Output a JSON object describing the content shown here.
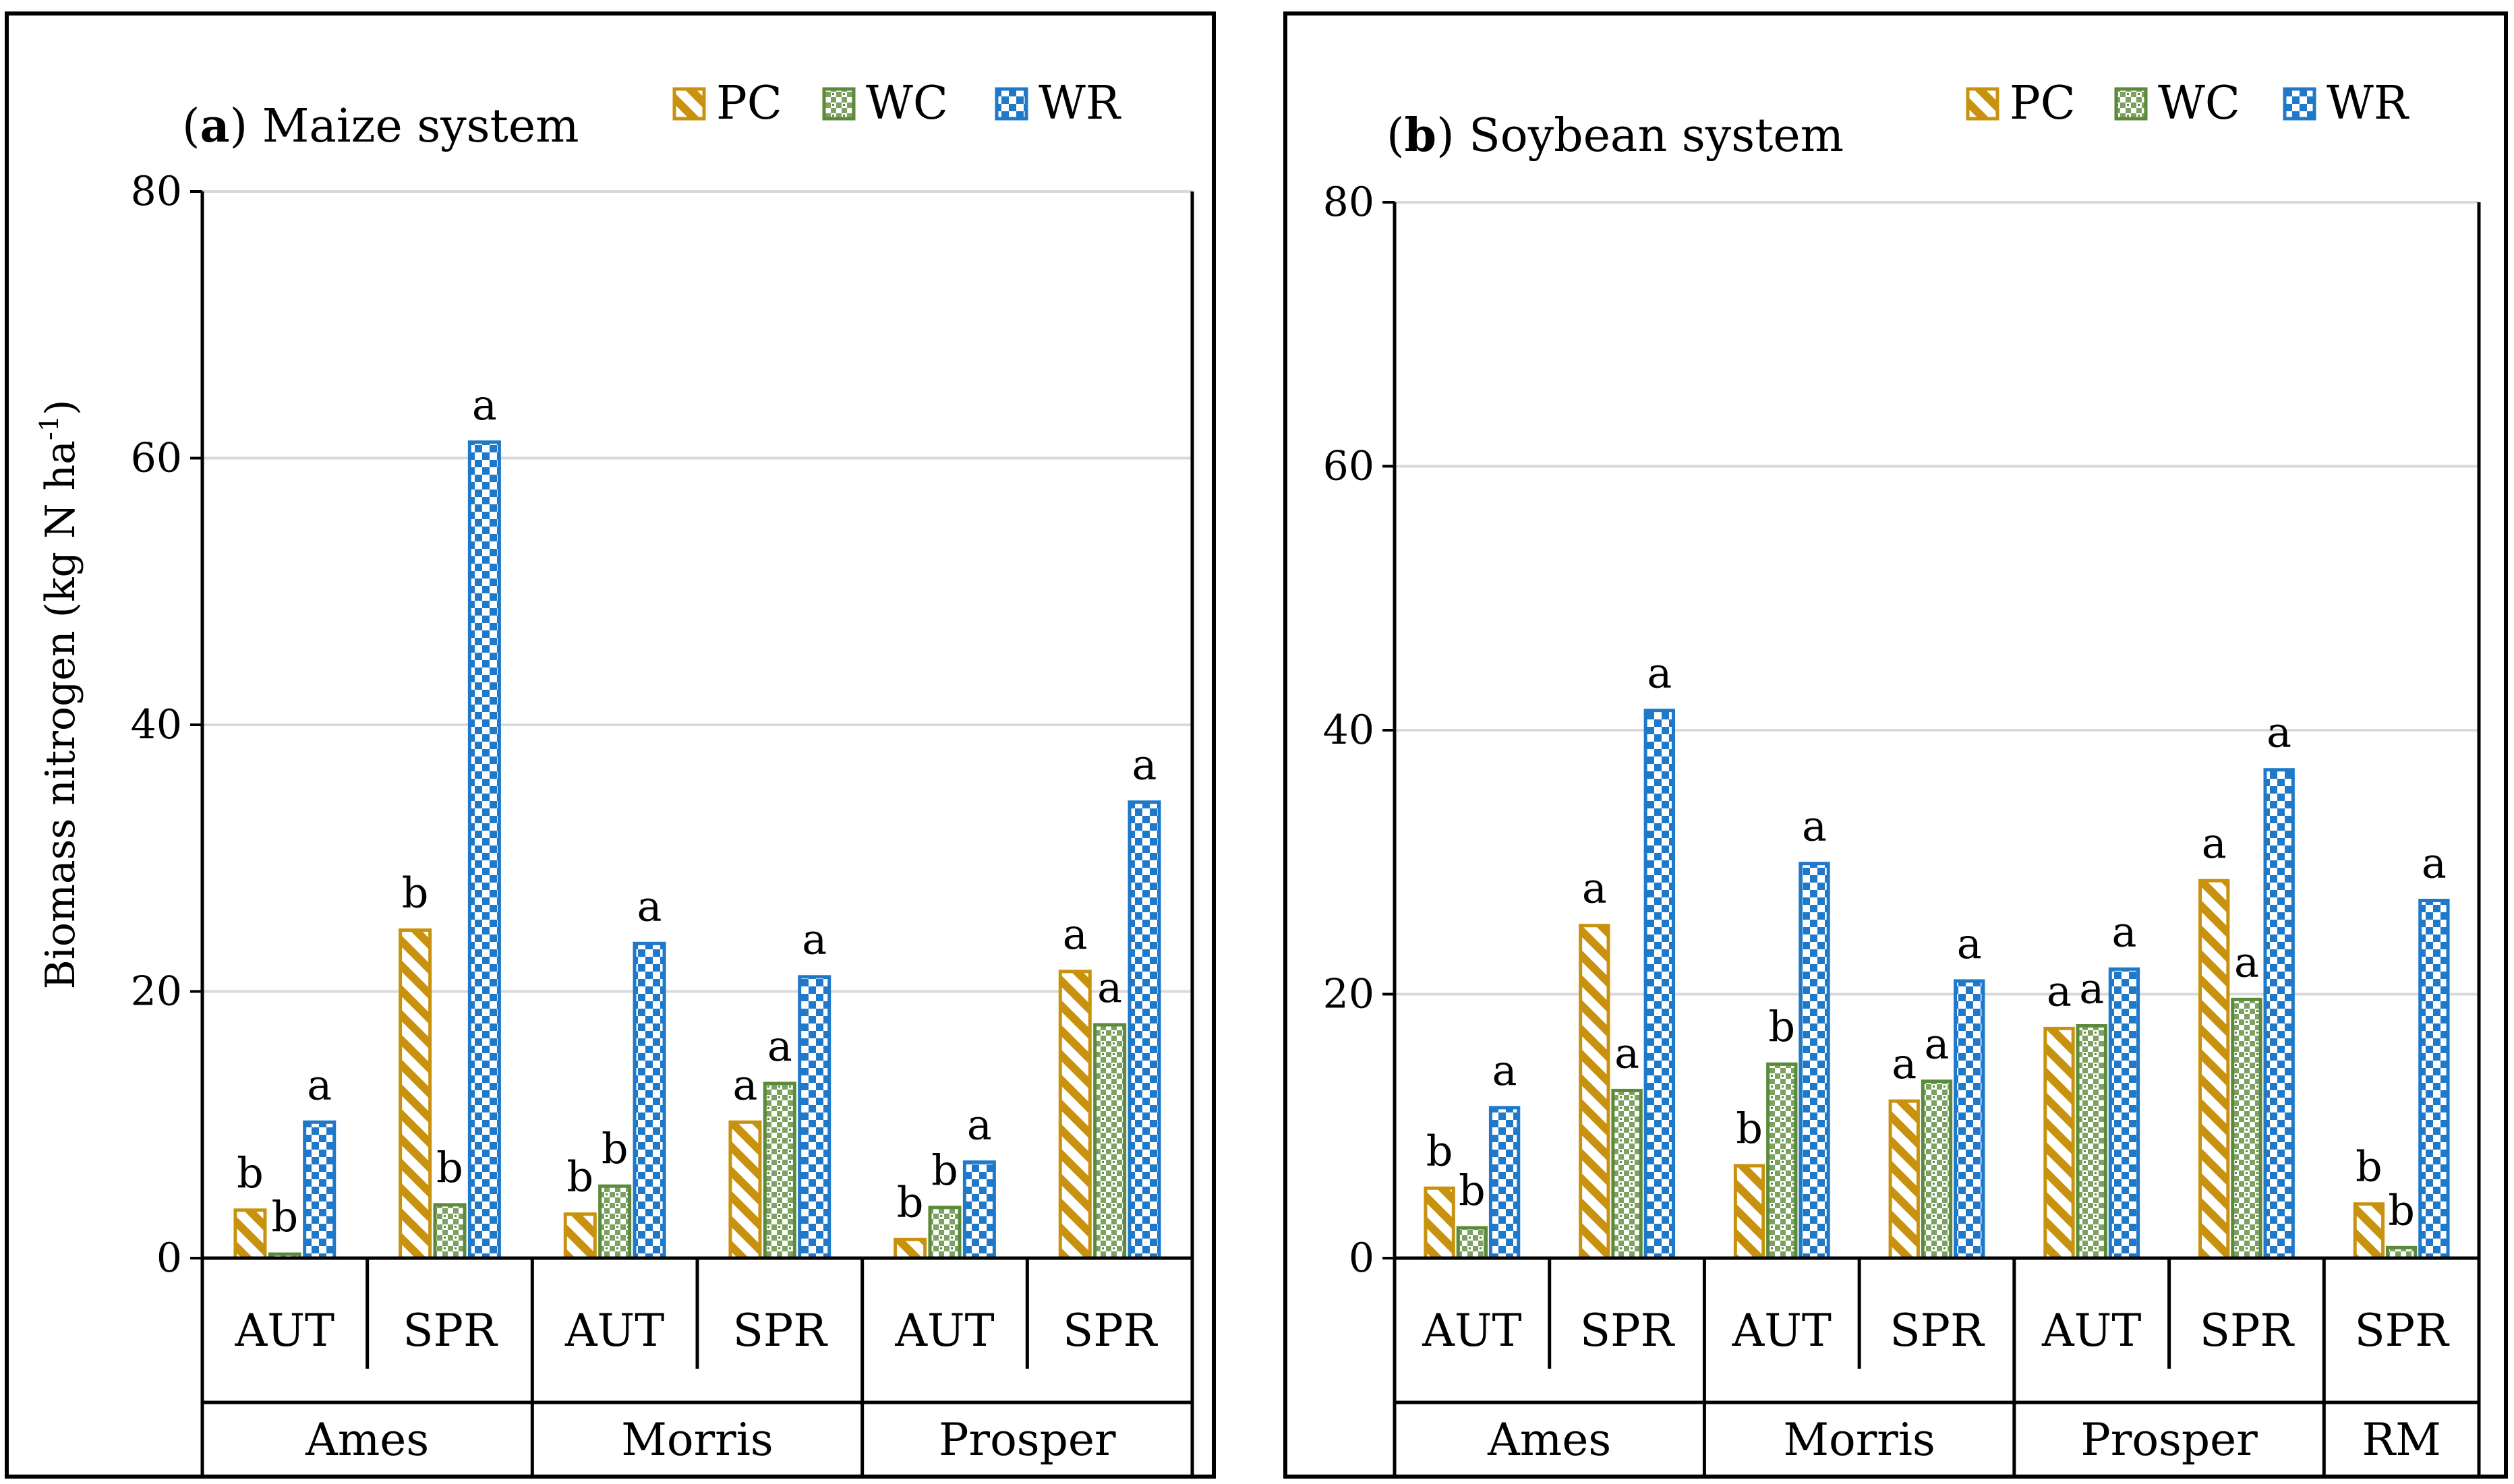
{
  "chart_data": [
    {
      "type": "bar",
      "title_letter": "a",
      "title_rest": ") Maize system",
      "title_open": "(",
      "ylabel": "Biomass nitrogen (kg N ha",
      "ylabel_sup": "-1",
      "ylabel_close": ")",
      "ylim": [
        0,
        80
      ],
      "yticks": [
        "0",
        "20",
        "40",
        "60",
        "80"
      ],
      "grid": true,
      "legend": [
        "PC",
        "WC",
        "WR"
      ],
      "categories": [
        "AUT",
        "SPR",
        "AUT",
        "SPR",
        "AUT",
        "SPR"
      ],
      "sites": [
        {
          "name": "Ames",
          "span": 2
        },
        {
          "name": "Morris",
          "span": 2
        },
        {
          "name": "Prosper",
          "span": 2
        }
      ],
      "series": [
        {
          "name": "PC",
          "values": [
            3.6,
            24.6,
            3.3,
            10.2,
            1.4,
            21.5
          ],
          "letters": [
            "b",
            "b",
            "b",
            "a",
            "b",
            "a"
          ]
        },
        {
          "name": "WC",
          "values": [
            0.3,
            4.0,
            5.4,
            13.1,
            3.8,
            17.5
          ],
          "letters": [
            "b",
            "b",
            "b",
            "a",
            "b",
            "a"
          ]
        },
        {
          "name": "WR",
          "values": [
            10.2,
            61.2,
            23.6,
            21.1,
            7.2,
            34.2
          ],
          "letters": [
            "a",
            "a",
            "a",
            "a",
            "a",
            "a"
          ]
        }
      ]
    },
    {
      "type": "bar",
      "title_letter": "b",
      "title_rest": ") Soybean system",
      "title_open": "(",
      "ylim": [
        0,
        80
      ],
      "yticks": [
        "0",
        "20",
        "40",
        "60",
        "80"
      ],
      "grid": true,
      "legend": [
        "PC",
        "WC",
        "WR"
      ],
      "categories": [
        "AUT",
        "SPR",
        "AUT",
        "SPR",
        "AUT",
        "SPR",
        "SPR"
      ],
      "sites": [
        {
          "name": "Ames",
          "span": 2
        },
        {
          "name": "Morris",
          "span": 2
        },
        {
          "name": "Prosper",
          "span": 2
        },
        {
          "name": "RM",
          "span": 1
        }
      ],
      "series": [
        {
          "name": "PC",
          "values": [
            5.3,
            25.2,
            7.0,
            11.9,
            17.4,
            28.6,
            4.1
          ],
          "letters": [
            "b",
            "a",
            "b",
            "a",
            "a",
            "a",
            "b"
          ]
        },
        {
          "name": "WC",
          "values": [
            2.3,
            12.7,
            14.7,
            13.4,
            17.6,
            19.6,
            0.8
          ],
          "letters": [
            "b",
            "a",
            "b",
            "a",
            "a",
            "a",
            "b"
          ]
        },
        {
          "name": "WR",
          "values": [
            11.4,
            41.5,
            29.9,
            21.0,
            21.9,
            37.0,
            27.1
          ],
          "letters": [
            "a",
            "a",
            "a",
            "a",
            "a",
            "a",
            "a"
          ]
        }
      ]
    }
  ],
  "colors": {
    "PC": "#C9920E",
    "WC": "#5B8A3A",
    "WR": "#1F78C8",
    "grid": "#D9D9D9",
    "axis": "#000000"
  }
}
